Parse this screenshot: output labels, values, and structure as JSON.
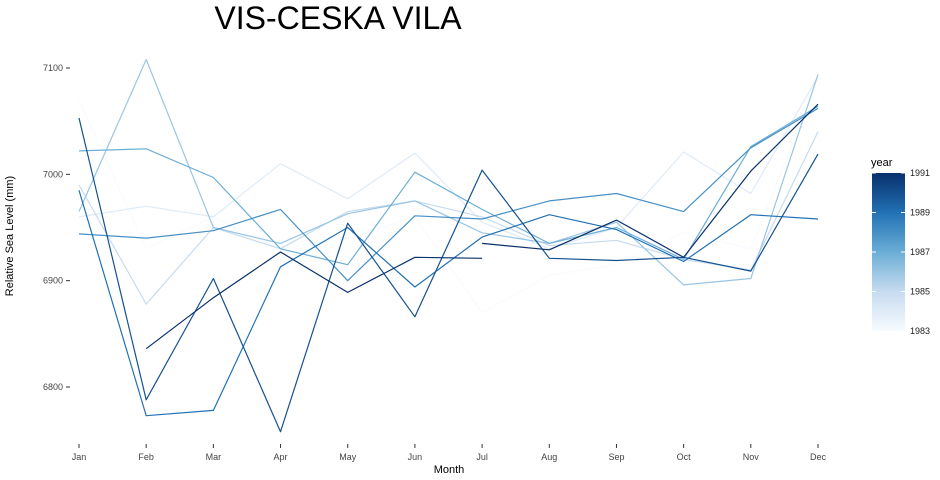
{
  "chart_data": {
    "type": "line",
    "title": "VIS-CESKA VILA",
    "xlabel": "Month",
    "ylabel": "Relative Sea Level (mm)",
    "categories": [
      "Jan",
      "Feb",
      "Mar",
      "Apr",
      "May",
      "Jun",
      "Jul",
      "Aug",
      "Sep",
      "Oct",
      "Nov",
      "Dec"
    ],
    "ylim": [
      6740,
      7120
    ],
    "yticks": [
      6800,
      6900,
      7000,
      7100
    ],
    "grid": false,
    "legend": {
      "title": "year",
      "position": "right",
      "colorbar_min": 1983,
      "colorbar_max": 1991,
      "ticks": [
        1983,
        1985,
        1987,
        1989,
        1991
      ],
      "low_color": "#f7fbff",
      "high_color": "#08306b"
    },
    "series": [
      {
        "year": 1983,
        "values": [
          7070,
          6930,
          6960,
          6930,
          6940,
          6960,
          6870,
          6905,
          6915,
          6945,
          6930,
          7090
        ]
      },
      {
        "year": 1984,
        "values": [
          6960,
          6970,
          6960,
          7010,
          6977,
          7020,
          6955,
          6930,
          6950,
          7021,
          6982,
          7092
        ]
      },
      {
        "year": 1985,
        "values": [
          6990,
          6878,
          6950,
          6930,
          6965,
          6975,
          6960,
          6933,
          6938,
          6920,
          6910,
          7040
        ]
      },
      {
        "year": 1986,
        "values": [
          6965,
          7108,
          6950,
          6935,
          6963,
          6975,
          6945,
          6935,
          6955,
          6896,
          6902,
          7094
        ]
      },
      {
        "year": 1987,
        "values": [
          7022,
          7024,
          6997,
          6930,
          6915,
          7002,
          6967,
          6935,
          6950,
          6920,
          7026,
          7064
        ]
      },
      {
        "year": 1988,
        "values": [
          6944,
          6940,
          6947,
          6967,
          6900,
          6961,
          6958,
          6975,
          6982,
          6965,
          7025,
          7062
        ]
      },
      {
        "year": 1989,
        "values": [
          6985,
          6773,
          6778,
          6913,
          6950,
          6894,
          6941,
          6962,
          6948,
          6918,
          6962,
          6958
        ]
      },
      {
        "year": 1990,
        "values": [
          7053,
          6788,
          6902,
          6758,
          6954,
          6866,
          7004,
          6921,
          6919,
          6922,
          6909,
          7019
        ]
      },
      {
        "year": 1991,
        "values": [
          null,
          6836,
          6884,
          6927,
          6889,
          6922,
          6921,
          null,
          null,
          null,
          null,
          null
        ]
      },
      {
        "year": 1991.5,
        "values": [
          null,
          null,
          null,
          null,
          null,
          null,
          6935,
          6929,
          6957,
          6922,
          7003,
          7066
        ]
      }
    ]
  }
}
